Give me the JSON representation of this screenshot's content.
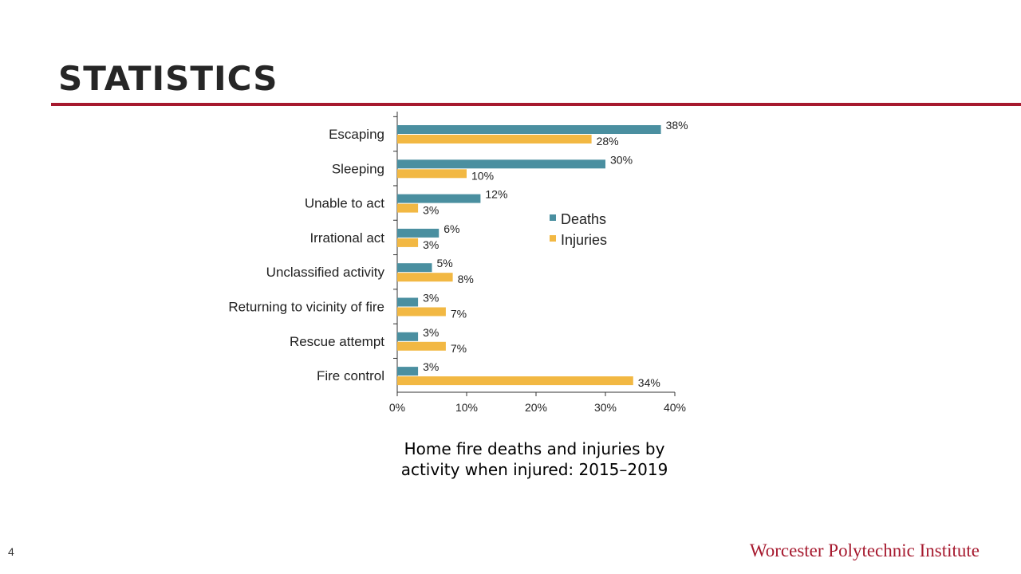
{
  "slide": {
    "title": "STATISTICS",
    "caption": "Home fire deaths and injuries by activity when injured: 2015–2019",
    "page_number": "4",
    "footer": "Worcester Polytechnic Institute",
    "accent_color": "#a6192e"
  },
  "chart_data": {
    "type": "bar",
    "orientation": "horizontal",
    "categories": [
      "Escaping",
      "Sleeping",
      "Unable to act",
      "Irrational act",
      "Unclassified activity",
      "Returning to vicinity of fire",
      "Rescue attempt",
      "Fire control"
    ],
    "series": [
      {
        "name": "Deaths",
        "color": "#4a8fa0",
        "values": [
          38,
          30,
          12,
          6,
          5,
          3,
          3,
          3
        ],
        "labels": [
          "38%",
          "30%",
          "12%",
          "6%",
          "5%",
          "3%",
          "3%",
          "3%"
        ]
      },
      {
        "name": "Injuries",
        "color": "#f2b843",
        "values": [
          28,
          10,
          3,
          3,
          8,
          7,
          7,
          34
        ],
        "labels": [
          "28%",
          "10%",
          "3%",
          "3%",
          "8%",
          "7%",
          "7%",
          "34%"
        ]
      }
    ],
    "xlim": [
      0,
      40
    ],
    "xticks": [
      0,
      10,
      20,
      30,
      40
    ],
    "xtick_labels": [
      "0%",
      "10%",
      "20%",
      "30%",
      "40%"
    ],
    "legend_placement": "right",
    "grid": false
  }
}
